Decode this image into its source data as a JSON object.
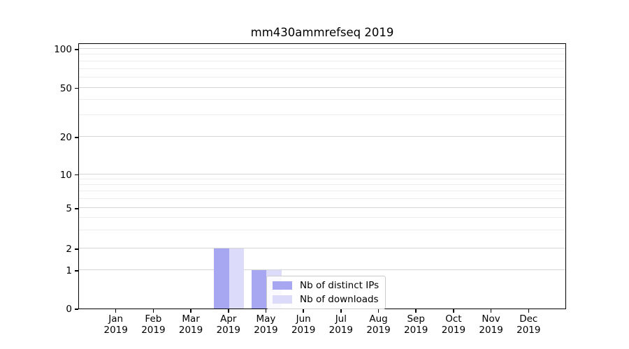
{
  "chart_data": {
    "type": "bar",
    "title": "mm430ammrefseq 2019",
    "categories": [
      "Jan",
      "Feb",
      "Mar",
      "Apr",
      "May",
      "Jun",
      "Jul",
      "Aug",
      "Sep",
      "Oct",
      "Nov",
      "Dec"
    ],
    "category_year": "2019",
    "series": [
      {
        "name": "Nb of distinct IPs",
        "color": "#a6a6f1",
        "values": [
          0,
          0,
          0,
          2,
          1,
          0,
          0,
          0,
          0,
          0,
          0,
          0
        ]
      },
      {
        "name": "Nb of downloads",
        "color": "#dcdcfa",
        "values": [
          0,
          0,
          0,
          2,
          1,
          0,
          0,
          0,
          0,
          0,
          0,
          0
        ]
      }
    ],
    "y_ticks": [
      0,
      1,
      2,
      5,
      10,
      20,
      50,
      100
    ],
    "y_minor_ticks": [
      3,
      4,
      6,
      7,
      8,
      9,
      30,
      40,
      60,
      70,
      80,
      90
    ],
    "yscale": "symlog",
    "ylim": [
      0,
      112
    ],
    "xlabel": "",
    "ylabel": "",
    "grid": true,
    "legend_position": "lower-center-inside"
  },
  "colors": {
    "grid_major": "#d5d5d5",
    "grid_minor": "#ededed",
    "spine": "#000000",
    "text": "#000000",
    "legend_border": "#cccccc"
  }
}
